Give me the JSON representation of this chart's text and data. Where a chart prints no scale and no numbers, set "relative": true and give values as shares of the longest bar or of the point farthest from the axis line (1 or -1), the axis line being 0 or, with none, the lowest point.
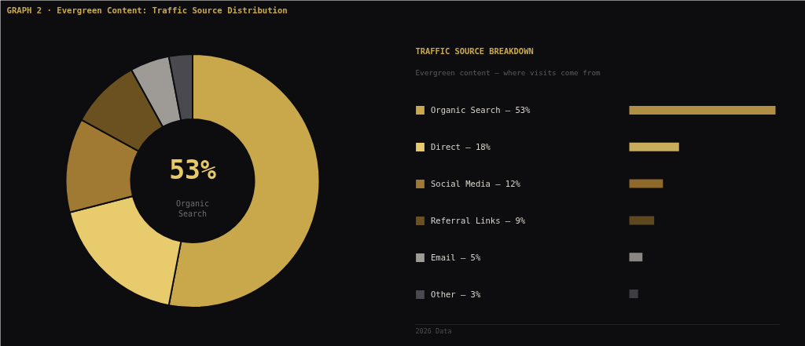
{
  "chart_data": [
    {
      "type": "donut",
      "title": "GRAPH 2 · Evergreen Content: Traffic Source Distribution",
      "categories": [
        "Organic Search — 53%",
        "Direct — 18%",
        "Social Media — 12%",
        "Referral Links — 9%",
        "Email — 5%",
        "Other — 3%"
      ],
      "values": [
        53,
        18,
        12,
        9,
        5,
        3
      ],
      "colors": [
        "#c9a84c",
        "#e8cb6c",
        "#a07a32",
        "#6b5020",
        "#9e9b97",
        "#4a4950"
      ],
      "annotations": [
        "53%",
        "Organic Search"
      ],
      "legend": "right",
      "legend_title": "TRAFFIC SOURCE BREAKDOWN"
    },
    {
      "type": "bar",
      "orientation": "horizontal",
      "relative": true,
      "subtitle": "Evergreen content — where visits come from",
      "categories": [
        null,
        null,
        null,
        null,
        null,
        null
      ],
      "values": [
        1,
        0.34,
        0.23,
        0.17,
        0.09,
        0.06
      ],
      "colors": [
        "#b08f45",
        "#c8ae5c",
        "#8d6a2c",
        "#5e4820",
        "#8a8682",
        "#3e3d44"
      ],
      "annotations": [
        "2026 Data"
      ]
    }
  ]
}
